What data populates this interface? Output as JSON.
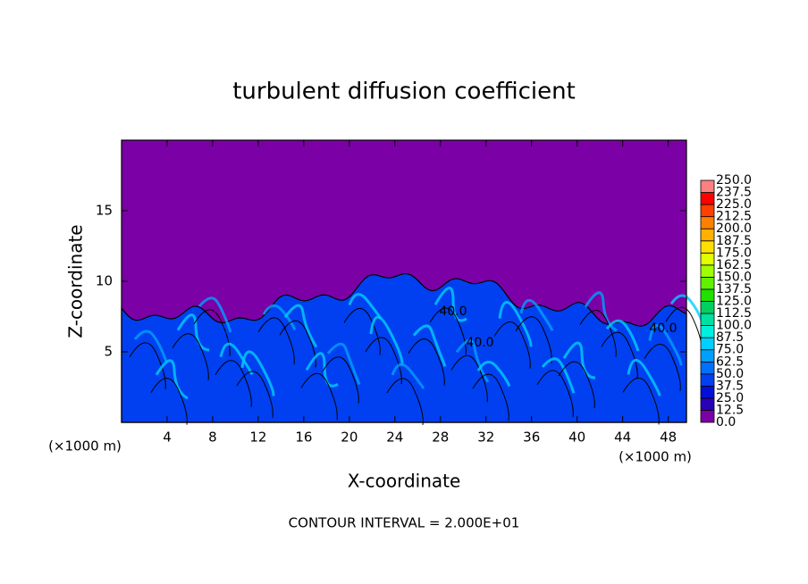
{
  "chart_data": {
    "type": "contour",
    "title": "turbulent diffusion coefficient",
    "x_label": "X-coordinate",
    "y_label": "Z-coordinate",
    "x_unit": "(×1000 m)",
    "y_unit": "(×1000 m)",
    "footer": "CONTOUR INTERVAL = 2.000E+01",
    "contour_labels": [
      "40.0",
      "40.0",
      "40.0"
    ],
    "xlim": [
      0,
      49.6
    ],
    "xticks": [
      4,
      8,
      12,
      16,
      20,
      24,
      28,
      32,
      36,
      40,
      44,
      48
    ],
    "ylim": [
      0,
      20
    ],
    "yticks": [
      5,
      10,
      15
    ],
    "colorbar": {
      "ticks": [
        {
          "value": 0,
          "label": "0.0"
        },
        {
          "value": 12.5,
          "label": "12.5"
        },
        {
          "value": 25,
          "label": "25.0"
        },
        {
          "value": 37.5,
          "label": "37.5"
        },
        {
          "value": 50,
          "label": "50.0"
        },
        {
          "value": 62.5,
          "label": "62.5"
        },
        {
          "value": 75,
          "label": "75.0"
        },
        {
          "value": 87.5,
          "label": "87.5"
        },
        {
          "value": 100,
          "label": "100.0"
        },
        {
          "value": 112.5,
          "label": "112.5"
        },
        {
          "value": 125,
          "label": "125.0"
        },
        {
          "value": 137.5,
          "label": "137.5"
        },
        {
          "value": 150,
          "label": "150.0"
        },
        {
          "value": 162.5,
          "label": "162.5"
        },
        {
          "value": 175,
          "label": "175.0"
        },
        {
          "value": 187.5,
          "label": "187.5"
        },
        {
          "value": 200,
          "label": "200.0"
        },
        {
          "value": 212.5,
          "label": "212.5"
        },
        {
          "value": 225,
          "label": "225.0"
        },
        {
          "value": 237.5,
          "label": "237.5"
        },
        {
          "value": 250,
          "label": "250.0"
        }
      ],
      "colors": [
        "#7b00a5",
        "#2a00b8",
        "#0010d8",
        "#0040f0",
        "#0070ff",
        "#00a0ff",
        "#00d0ff",
        "#00f0e0",
        "#00e0a0",
        "#00d060",
        "#20e000",
        "#60f000",
        "#a0ff00",
        "#e0ff00",
        "#ffe000",
        "#ffb000",
        "#ff8000",
        "#ff4000",
        "#ff0000",
        "#ff8080"
      ]
    }
  }
}
